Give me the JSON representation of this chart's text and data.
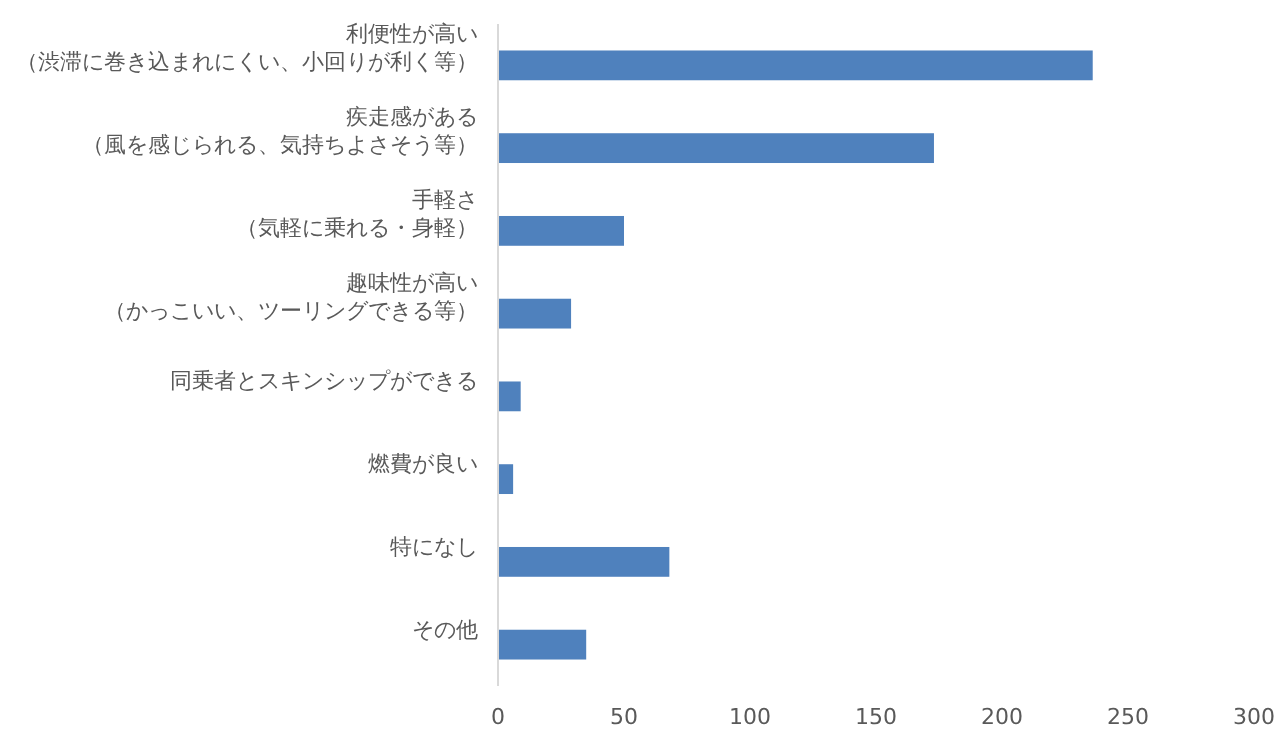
{
  "chart_data": {
    "type": "bar",
    "orientation": "horizontal",
    "categories": [
      "利便性が高い（渋滞に巻き込まれにくい、小回りが利く等）",
      "疾走感がある（風を感じられる、気持ちよさそう等）",
      "手軽さ（気軽に乗れる・身軽）",
      "趣味性が高い（かっこいい、ツーリングできる等）",
      "同乗者とスキンシップができる",
      "燃費が良い",
      "特になし",
      "その他"
    ],
    "values": [
      236,
      173,
      50,
      29,
      9,
      6,
      68,
      35
    ],
    "color": "#4f81bd",
    "xlim": [
      0,
      300
    ],
    "xticks": [
      0,
      50,
      100,
      150,
      200,
      250,
      300
    ],
    "grid": false
  }
}
